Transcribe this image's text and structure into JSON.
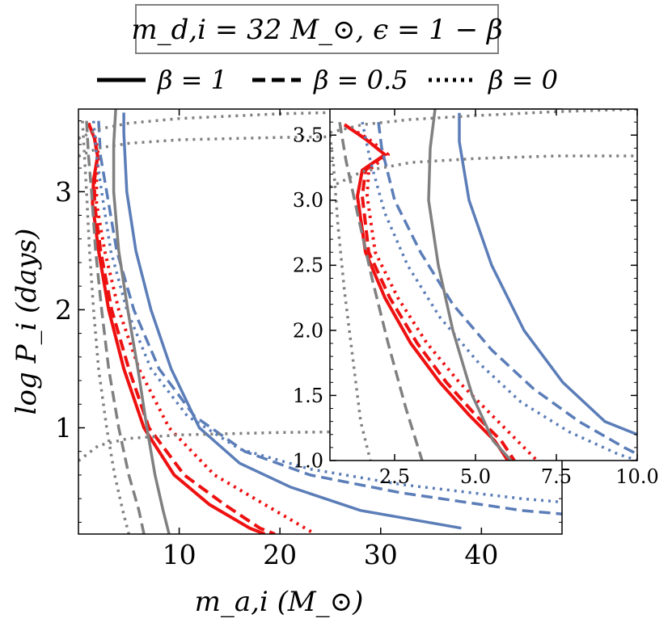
{
  "title": "m_d,i = 32 M_⊙, ϵ = 1 − β",
  "legend": [
    {
      "label": "β = 1",
      "style": "solid"
    },
    {
      "label": "β = 0.5",
      "style": "dashed"
    },
    {
      "label": "β = 0",
      "style": "dotted"
    }
  ],
  "colors": {
    "red": "#ee1111",
    "blue": "#5b7db8",
    "gray": "#808080",
    "frame": "#000000"
  },
  "chart_data": [
    {
      "type": "line",
      "panel": "main",
      "xlabel": "m_a,i (M_⊙)",
      "ylabel": "log P_i (days)",
      "xlim": [
        0,
        48
      ],
      "ylim": [
        0.1,
        3.7
      ],
      "xticks": [
        10,
        20,
        30,
        40
      ],
      "xtick_labels": [
        "10",
        "20",
        "30",
        "40"
      ],
      "yticks": [
        1,
        2,
        3
      ],
      "ytick_labels": [
        "1",
        "2",
        "3"
      ],
      "series": [
        {
          "color": "red",
          "style": "solid",
          "x": [
            1.0,
            1.6,
            1.9,
            1.5,
            1.4,
            2.0,
            3.0,
            4.5,
            6.5,
            9.5,
            13.0,
            17.0,
            18.5
          ],
          "y": [
            3.58,
            3.45,
            3.3,
            3.1,
            2.9,
            2.5,
            2.0,
            1.5,
            1.0,
            0.6,
            0.35,
            0.15,
            0.1
          ]
        },
        {
          "color": "red",
          "style": "dashed",
          "x": [
            1.0,
            1.6,
            1.9,
            1.6,
            1.6,
            2.2,
            3.3,
            5.0,
            7.0,
            10.5,
            14.5,
            18.0,
            19.5
          ],
          "y": [
            3.58,
            3.45,
            3.3,
            3.1,
            2.9,
            2.5,
            2.0,
            1.5,
            1.0,
            0.6,
            0.35,
            0.15,
            0.1
          ]
        },
        {
          "color": "red",
          "style": "dotted",
          "x": [
            1.0,
            1.7,
            2.0,
            1.8,
            1.8,
            2.6,
            4.0,
            6.0,
            9.0,
            13.5,
            18.5,
            22.5,
            23.5
          ],
          "y": [
            3.58,
            3.45,
            3.3,
            3.1,
            2.9,
            2.5,
            2.0,
            1.5,
            1.0,
            0.6,
            0.35,
            0.15,
            0.1
          ]
        },
        {
          "color": "blue",
          "style": "solid",
          "x": [
            4.5,
            4.5,
            4.8,
            5.7,
            7.2,
            9.2,
            12.0,
            16.0,
            21.0,
            28.0,
            38.0
          ],
          "y": [
            3.67,
            3.5,
            3.0,
            2.5,
            2.0,
            1.5,
            1.0,
            0.7,
            0.5,
            0.3,
            0.15
          ]
        },
        {
          "color": "blue",
          "style": "dashed",
          "x": [
            2.0,
            2.2,
            2.8,
            3.8,
            5.5,
            8.0,
            11.5,
            16.5,
            23.0,
            32.0,
            44.0,
            48.0
          ],
          "y": [
            3.6,
            3.3,
            3.0,
            2.5,
            2.0,
            1.5,
            1.1,
            0.8,
            0.6,
            0.45,
            0.3,
            0.27
          ]
        },
        {
          "color": "blue",
          "style": "dotted",
          "x": [
            1.5,
            1.8,
            2.3,
            3.2,
            4.8,
            7.2,
            10.8,
            16.0,
            23.0,
            32.0,
            44.0,
            48.0
          ],
          "y": [
            3.6,
            3.3,
            3.0,
            2.5,
            2.0,
            1.5,
            1.1,
            0.82,
            0.65,
            0.52,
            0.4,
            0.37
          ]
        },
        {
          "color": "gray",
          "style": "solid",
          "x": [
            3.7,
            3.5,
            3.5,
            4.0,
            4.9,
            5.9,
            6.8,
            7.6,
            8.4,
            9.0
          ],
          "y": [
            3.7,
            3.4,
            3.0,
            2.5,
            2.0,
            1.5,
            1.0,
            0.6,
            0.3,
            0.1
          ]
        },
        {
          "color": "gray",
          "style": "dashed",
          "x": [
            0.8,
            1.0,
            1.3,
            1.7,
            2.3,
            3.0,
            4.0,
            5.0,
            6.0,
            6.5
          ],
          "y": [
            3.6,
            3.3,
            3.0,
            2.5,
            2.0,
            1.5,
            1.0,
            0.6,
            0.3,
            0.1
          ]
        },
        {
          "color": "gray",
          "style": "dotted",
          "x": [
            0.4,
            0.6,
            0.8,
            1.1,
            1.5,
            2.0,
            2.8,
            3.6,
            4.4,
            5.0
          ],
          "y": [
            3.6,
            3.3,
            3.0,
            2.5,
            2.0,
            1.5,
            1.0,
            0.6,
            0.3,
            0.1
          ]
        },
        {
          "color": "gray",
          "style": "dotted",
          "x": [
            0.0,
            2.0,
            5.0,
            10.0,
            20.0,
            30.0,
            40.0,
            48.0
          ],
          "y": [
            3.45,
            3.53,
            3.58,
            3.62,
            3.66,
            3.68,
            3.7,
            3.7
          ]
        },
        {
          "color": "gray",
          "style": "dotted",
          "x": [
            0.0,
            2.0,
            5.0,
            10.0,
            20.0,
            30.0,
            40.0,
            48.0
          ],
          "y": [
            3.3,
            3.37,
            3.41,
            3.44,
            3.46,
            3.47,
            3.48,
            3.48
          ]
        },
        {
          "color": "gray",
          "style": "dotted",
          "x": [
            0.0,
            2.0,
            5.0,
            10.0,
            20.0,
            30.0,
            40.0,
            48.0
          ],
          "y": [
            0.72,
            0.85,
            0.91,
            0.94,
            0.96,
            0.97,
            0.98,
            0.98
          ]
        }
      ]
    },
    {
      "type": "line",
      "panel": "inset",
      "xlim": [
        0.5,
        10.0
      ],
      "ylim": [
        1.0,
        3.7
      ],
      "xticks": [
        2.5,
        5.0,
        7.5,
        10.0
      ],
      "xtick_labels": [
        "2.5",
        "5.0",
        "7.5",
        "10.0"
      ],
      "yticks": [
        1.0,
        1.5,
        2.0,
        2.5,
        3.0,
        3.5
      ],
      "ytick_labels": [
        "1.0",
        "1.5",
        "2.0",
        "2.5",
        "3.0",
        "3.5"
      ],
      "series": [
        {
          "color": "red",
          "style": "solid",
          "x": [
            0.95,
            1.6,
            2.2,
            1.5,
            1.35,
            1.6,
            2.2,
            3.0,
            3.9,
            4.8,
            5.6,
            6.0
          ],
          "y": [
            3.58,
            3.47,
            3.35,
            3.23,
            3.03,
            2.6,
            2.25,
            1.9,
            1.6,
            1.35,
            1.15,
            1.0
          ]
        },
        {
          "color": "red",
          "style": "dashed",
          "x": [
            0.95,
            1.6,
            2.2,
            1.6,
            1.5,
            1.7,
            2.35,
            3.2,
            4.1,
            5.0,
            5.8,
            6.2
          ],
          "y": [
            3.58,
            3.47,
            3.35,
            3.23,
            3.03,
            2.6,
            2.25,
            1.9,
            1.6,
            1.35,
            1.15,
            1.0
          ]
        },
        {
          "color": "red",
          "style": "dotted",
          "x": [
            0.95,
            1.7,
            2.3,
            1.7,
            1.65,
            1.9,
            2.6,
            3.5,
            4.5,
            5.5,
            6.3,
            6.9
          ],
          "y": [
            3.58,
            3.47,
            3.35,
            3.23,
            3.03,
            2.6,
            2.25,
            1.9,
            1.6,
            1.35,
            1.15,
            1.0
          ]
        },
        {
          "color": "blue",
          "style": "solid",
          "x": [
            4.5,
            4.5,
            4.8,
            5.5,
            6.5,
            7.7,
            9.0,
            10.0
          ],
          "y": [
            3.67,
            3.45,
            3.0,
            2.5,
            2.0,
            1.6,
            1.3,
            1.2
          ]
        },
        {
          "color": "blue",
          "style": "dashed",
          "x": [
            2.0,
            2.1,
            2.5,
            3.3,
            4.3,
            5.5,
            6.8,
            8.2,
            9.6,
            10.0
          ],
          "y": [
            3.6,
            3.4,
            3.0,
            2.6,
            2.2,
            1.85,
            1.55,
            1.3,
            1.1,
            1.05
          ]
        },
        {
          "color": "blue",
          "style": "dotted",
          "x": [
            1.5,
            1.75,
            2.2,
            2.9,
            3.9,
            5.1,
            6.4,
            7.9,
            9.4,
            10.0
          ],
          "y": [
            3.6,
            3.3,
            2.9,
            2.5,
            2.1,
            1.75,
            1.45,
            1.22,
            1.05,
            1.0
          ]
        },
        {
          "color": "gray",
          "style": "solid",
          "x": [
            3.75,
            3.6,
            3.55,
            3.85,
            4.3,
            4.9,
            5.55,
            6.1
          ],
          "y": [
            3.7,
            3.4,
            3.0,
            2.5,
            2.0,
            1.5,
            1.15,
            1.0
          ]
        },
        {
          "color": "gray",
          "style": "dashed",
          "x": [
            0.8,
            1.0,
            1.35,
            1.8,
            2.3,
            2.85,
            3.35
          ],
          "y": [
            3.6,
            3.3,
            2.9,
            2.4,
            1.9,
            1.4,
            1.0
          ]
        },
        {
          "color": "gray",
          "style": "dotted",
          "x": [
            0.5,
            0.6,
            0.75,
            0.95,
            1.2,
            1.45,
            1.75
          ],
          "y": [
            3.5,
            3.3,
            2.8,
            2.3,
            1.8,
            1.3,
            1.0
          ]
        },
        {
          "color": "gray",
          "style": "dotted",
          "x": [
            0.5,
            1.5,
            3.0,
            5.0,
            7.5,
            10.0
          ],
          "y": [
            3.52,
            3.58,
            3.62,
            3.65,
            3.68,
            3.7
          ]
        },
        {
          "color": "gray",
          "style": "dotted",
          "x": [
            0.5,
            1.5,
            3.0,
            5.0,
            7.5,
            10.0
          ],
          "y": [
            3.1,
            3.22,
            3.29,
            3.32,
            3.34,
            3.34
          ]
        }
      ]
    }
  ]
}
